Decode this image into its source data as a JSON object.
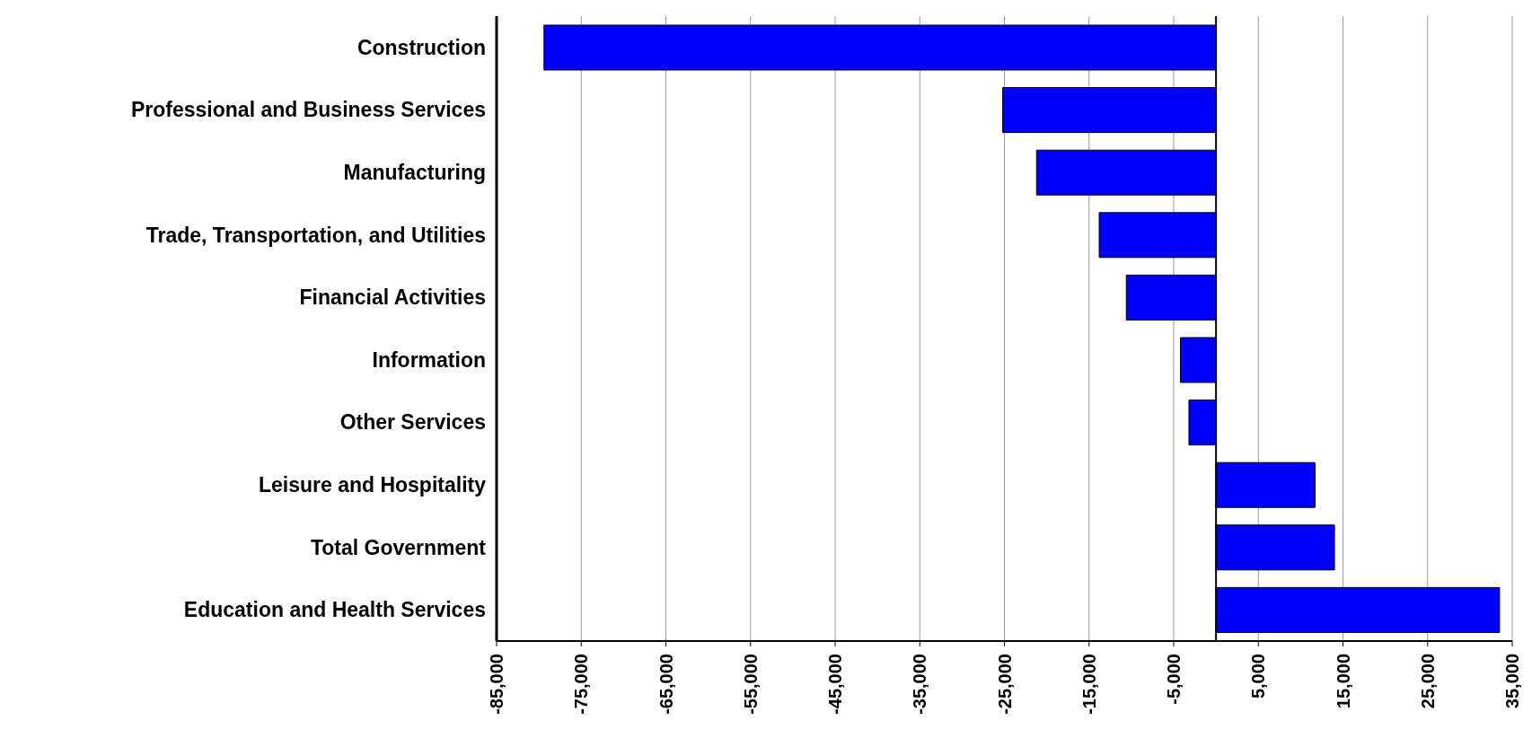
{
  "chart_data": {
    "type": "bar",
    "orientation": "horizontal",
    "categories": [
      "Construction",
      "Professional and Business Services",
      "Manufacturing",
      "Trade, Transportation, and Utilities",
      "Financial Activities",
      "Information",
      "Other Services",
      "Leisure and Hospitality",
      "Total Government",
      "Education and Health Services"
    ],
    "values": [
      -79400,
      -25200,
      -21200,
      -13800,
      -10600,
      -4200,
      -3200,
      11700,
      14000,
      33500
    ],
    "color": "#0000ff",
    "xlim": [
      -85000,
      35000
    ],
    "xticks": [
      {
        "value": -85000,
        "label": "-85,000"
      },
      {
        "value": -75000,
        "label": "-75,000"
      },
      {
        "value": -65000,
        "label": "-65,000"
      },
      {
        "value": -55000,
        "label": "-55,000"
      },
      {
        "value": -45000,
        "label": "-45,000"
      },
      {
        "value": -35000,
        "label": "-35,000"
      },
      {
        "value": -25000,
        "label": "-25,000"
      },
      {
        "value": -15000,
        "label": "-15,000"
      },
      {
        "value": -5000,
        "label": "-5,000"
      },
      {
        "value": 5000,
        "label": "5,000"
      },
      {
        "value": 15000,
        "label": "15,000"
      },
      {
        "value": 25000,
        "label": "25,000"
      },
      {
        "value": 35000,
        "label": "35,000"
      }
    ],
    "grid": "x"
  }
}
